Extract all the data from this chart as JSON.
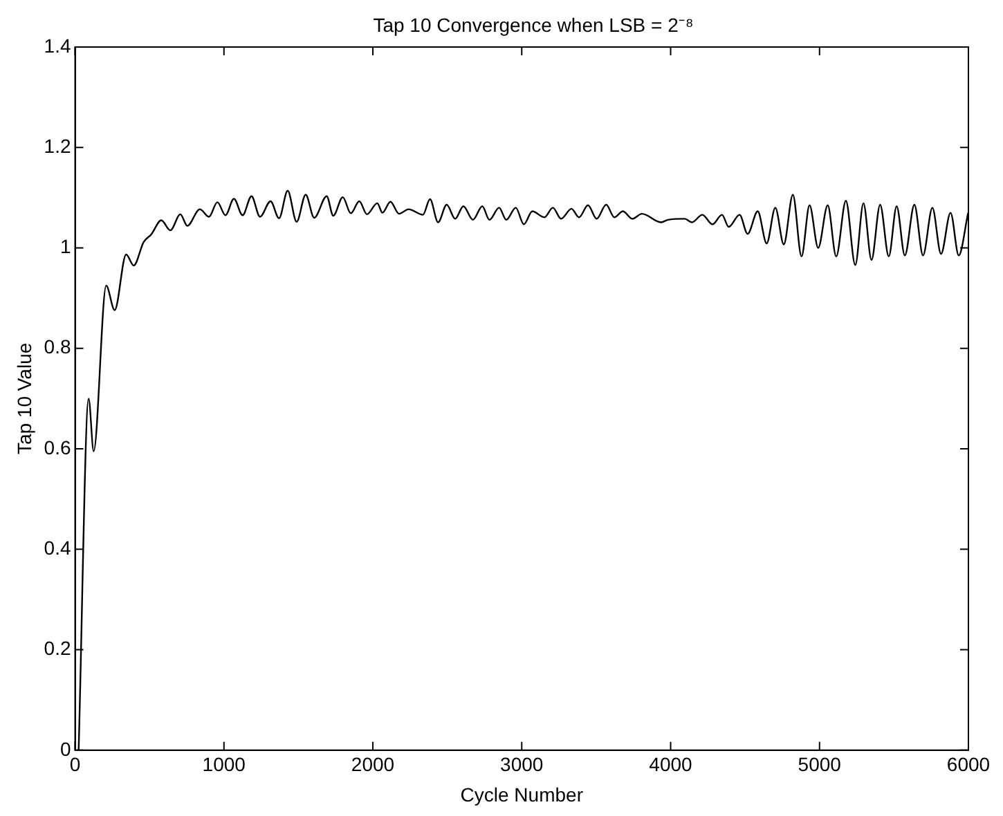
{
  "chart_data": {
    "type": "line",
    "title": "Tap 10 Convergence when LSB = 2⁻⁸",
    "xlabel": "Cycle Number",
    "ylabel": "Tap 10 Value",
    "xlim": [
      0,
      6000
    ],
    "xticks": [
      0,
      1000,
      2000,
      3000,
      4000,
      5000,
      6000
    ],
    "ylim": [
      0,
      1.4
    ],
    "yticks": [
      0,
      0.2,
      0.4,
      0.6,
      0.8,
      1,
      1.2,
      1.4
    ],
    "legend": false,
    "marker": "none",
    "line_style": "solid",
    "series": [
      {
        "color": "#000000",
        "x": [
          24,
          91,
          125,
          209,
          266,
          343,
          394,
          461,
          512,
          579,
          640,
          707,
          754,
          838,
          899,
          956,
          1010,
          1067,
          1125,
          1185,
          1242,
          1313,
          1370,
          1428,
          1488,
          1549,
          1606,
          1690,
          1734,
          1798,
          1852,
          1909,
          1960,
          2030,
          2064,
          2118,
          2176,
          2240,
          2336,
          2384,
          2438,
          2496,
          2553,
          2608,
          2672,
          2735,
          2783,
          2848,
          2896,
          2960,
          3014,
          3071,
          3152,
          3209,
          3264,
          3334,
          3385,
          3445,
          3503,
          3567,
          3622,
          3679,
          3743,
          3807,
          3935,
          3983,
          4095,
          4143,
          4213,
          4281,
          4345,
          4390,
          4463,
          4517,
          4585,
          4645,
          4703,
          4760,
          4821,
          4879,
          4933,
          4991,
          5055,
          5112,
          5177,
          5240,
          5295,
          5349,
          5407,
          5465,
          5518,
          5573,
          5637,
          5695,
          5758,
          5816,
          5880,
          5935,
          5998
        ],
        "values": [
          0,
          0.7,
          0.595,
          0.925,
          0.876,
          0.987,
          0.965,
          1.012,
          1.027,
          1.055,
          1.035,
          1.067,
          1.044,
          1.077,
          1.062,
          1.091,
          1.065,
          1.098,
          1.065,
          1.103,
          1.062,
          1.093,
          1.059,
          1.114,
          1.052,
          1.106,
          1.06,
          1.103,
          1.064,
          1.101,
          1.069,
          1.093,
          1.067,
          1.089,
          1.07,
          1.092,
          1.068,
          1.077,
          1.066,
          1.097,
          1.051,
          1.086,
          1.058,
          1.083,
          1.056,
          1.083,
          1.056,
          1.08,
          1.056,
          1.08,
          1.047,
          1.073,
          1.061,
          1.08,
          1.058,
          1.078,
          1.061,
          1.085,
          1.058,
          1.086,
          1.061,
          1.073,
          1.058,
          1.068,
          1.051,
          1.056,
          1.058,
          1.051,
          1.066,
          1.047,
          1.066,
          1.042,
          1.066,
          1.028,
          1.073,
          1.009,
          1.08,
          1.007,
          1.106,
          0.983,
          1.085,
          1,
          1.085,
          0.983,
          1.094,
          0.966,
          1.089,
          0.976,
          1.086,
          0.983,
          1.083,
          0.985,
          1.086,
          0.985,
          1.08,
          0.988,
          1.07,
          0.985,
          1.07
        ]
      }
    ]
  }
}
